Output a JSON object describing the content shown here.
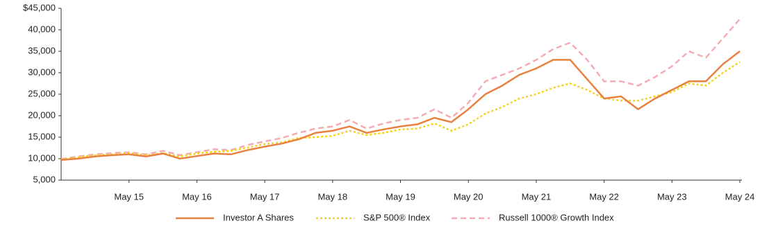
{
  "chart_data": {
    "type": "line",
    "categories": [
      null,
      null,
      null,
      null,
      "May 15",
      null,
      null,
      null,
      "May 16",
      null,
      null,
      null,
      "May 17",
      null,
      null,
      null,
      "May 18",
      null,
      null,
      null,
      "May 19",
      null,
      null,
      null,
      "May 20",
      null,
      null,
      null,
      "May 21",
      null,
      null,
      null,
      "May 22",
      null,
      null,
      null,
      "May 23",
      null,
      null,
      null,
      "May 24"
    ],
    "series": [
      {
        "name": "Investor A Shares",
        "color": "#e8803f",
        "style": "solid",
        "values": [
          9700,
          10000,
          10500,
          10800,
          11000,
          10500,
          11200,
          10000,
          10600,
          11200,
          11000,
          12000,
          12800,
          13500,
          14500,
          16000,
          16500,
          17500,
          16000,
          16800,
          17500,
          18000,
          19500,
          18500,
          21500,
          25000,
          27000,
          29500,
          31000,
          33000,
          33000,
          28500,
          24000,
          24500,
          21500,
          24000,
          26000,
          28000,
          28000,
          32000,
          35000
        ]
      },
      {
        "name": "S&P 500® Index",
        "color": "#f5d31c",
        "style": "dotted",
        "values": [
          9800,
          10300,
          10800,
          11000,
          11300,
          10800,
          11300,
          10500,
          11200,
          11600,
          11800,
          12600,
          13400,
          13800,
          14800,
          15000,
          15300,
          16500,
          15500,
          16000,
          16800,
          17000,
          18200,
          16500,
          18000,
          20500,
          22000,
          24000,
          25000,
          26500,
          27500,
          26000,
          24000,
          23500,
          23500,
          24500,
          25500,
          27500,
          27000,
          30000,
          32500
        ]
      },
      {
        "name": "Russell 1000® Growth Index",
        "color": "#f4abb2",
        "style": "dashed",
        "values": [
          9900,
          10500,
          11000,
          11300,
          11500,
          11000,
          11800,
          10800,
          11500,
          12200,
          12000,
          13200,
          14000,
          14800,
          16000,
          17000,
          17500,
          19000,
          17000,
          18200,
          19000,
          19500,
          21500,
          19500,
          23000,
          28000,
          29500,
          31000,
          33000,
          35500,
          37000,
          33000,
          28000,
          28000,
          27000,
          29000,
          31500,
          35000,
          33500,
          38000,
          42500
        ]
      }
    ],
    "ylim": [
      5000,
      45000
    ],
    "yticks": [
      {
        "value": 5000,
        "label": "5,000"
      },
      {
        "value": 10000,
        "label": "10,000"
      },
      {
        "value": 15000,
        "label": "15,000"
      },
      {
        "value": 20000,
        "label": "20,000"
      },
      {
        "value": 25000,
        "label": "25,000"
      },
      {
        "value": 30000,
        "label": "30,000"
      },
      {
        "value": 35000,
        "label": "35,000"
      },
      {
        "value": 40000,
        "label": "40,000"
      },
      {
        "value": 45000,
        "label": "$45,000"
      }
    ],
    "legend": "bottom"
  }
}
